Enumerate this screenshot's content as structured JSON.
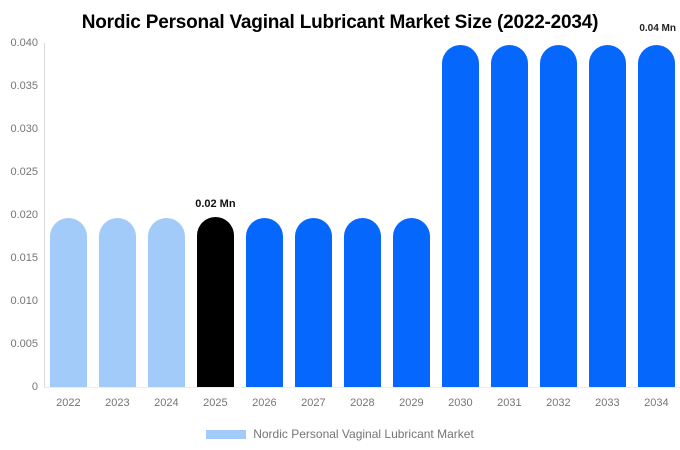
{
  "title": "Nordic Personal Vaginal Lubricant Market Size (2022-2034)",
  "annotations": {
    "selected_bar_label": "0.02 Mn",
    "top_right_label": "0.04 Mn"
  },
  "legend": {
    "label": "Nordic Personal Vaginal Lubricant Market",
    "swatch_color": "#a3cbf9"
  },
  "palette": {
    "historical_bar": "#a3cbf9",
    "base_year_bar": "#000000",
    "forecast_bar": "#0667fc",
    "axis_text": "#757575",
    "title_text": "#000000"
  },
  "chart_data": {
    "type": "bar",
    "title": "Nordic Personal Vaginal Lubricant Market Size (2022-2034)",
    "categories": [
      "2022",
      "2023",
      "2024",
      "2025",
      "2026",
      "2027",
      "2028",
      "2029",
      "2030",
      "2031",
      "2032",
      "2033",
      "2034"
    ],
    "values": [
      0.0197,
      0.0197,
      0.0197,
      0.0198,
      0.0197,
      0.0197,
      0.0197,
      0.0197,
      0.0398,
      0.0398,
      0.0398,
      0.0398,
      0.0398
    ],
    "bar_colors": [
      "#a3cbf9",
      "#a3cbf9",
      "#a3cbf9",
      "#000000",
      "#0667fc",
      "#0667fc",
      "#0667fc",
      "#0667fc",
      "#0667fc",
      "#0667fc",
      "#0667fc",
      "#0667fc",
      "#0667fc"
    ],
    "xlabel": "",
    "ylabel": "",
    "ylim": [
      0,
      0.04
    ],
    "ytick_labels": [
      "0.040",
      "0.035",
      "0.030",
      "0.025",
      "0.020",
      "0.015",
      "0.010",
      "0.005",
      "0"
    ],
    "grid": false,
    "legend_position": "bottom",
    "legend_entries": [
      "Nordic Personal Vaginal Lubricant Market"
    ],
    "annotations": [
      {
        "target": "2025",
        "text": "0.02 Mn",
        "position": "above-bar"
      },
      {
        "target": "2034",
        "text": "0.04 Mn",
        "position": "top-right"
      }
    ]
  }
}
